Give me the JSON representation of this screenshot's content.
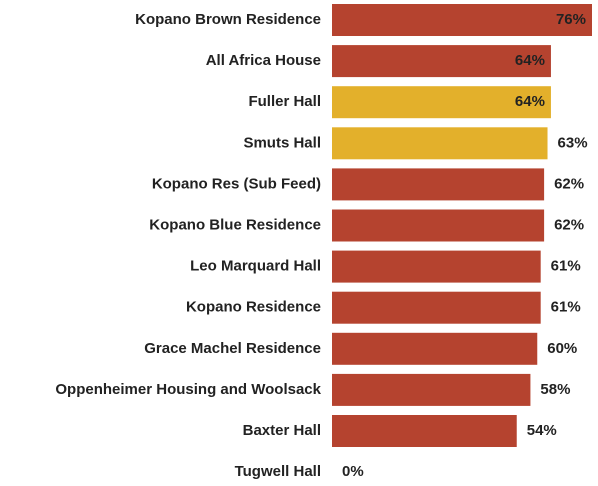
{
  "chart_data": {
    "type": "bar",
    "orientation": "horizontal",
    "categories": [
      "Kopano Brown Residence",
      "All Africa House",
      "Fuller Hall",
      "Smuts Hall",
      "Kopano Res (Sub Feed)",
      "Kopano Blue Residence",
      "Leo Marquard Hall",
      "Kopano Residence",
      "Grace Machel Residence",
      "Oppenheimer Housing and Woolsack",
      "Baxter Hall",
      "Tugwell Hall"
    ],
    "values": [
      76,
      64,
      64,
      63,
      62,
      62,
      61,
      61,
      60,
      58,
      54,
      0
    ],
    "value_labels": [
      "76%",
      "64%",
      "64%",
      "63%",
      "62%",
      "62%",
      "61%",
      "61%",
      "60%",
      "58%",
      "54%",
      "0%"
    ],
    "colors": [
      "#b5432f",
      "#b5432f",
      "#e3b02b",
      "#e3b02b",
      "#b5432f",
      "#b5432f",
      "#b5432f",
      "#b5432f",
      "#b5432f",
      "#b5432f",
      "#b5432f",
      "#b5432f"
    ]
  }
}
